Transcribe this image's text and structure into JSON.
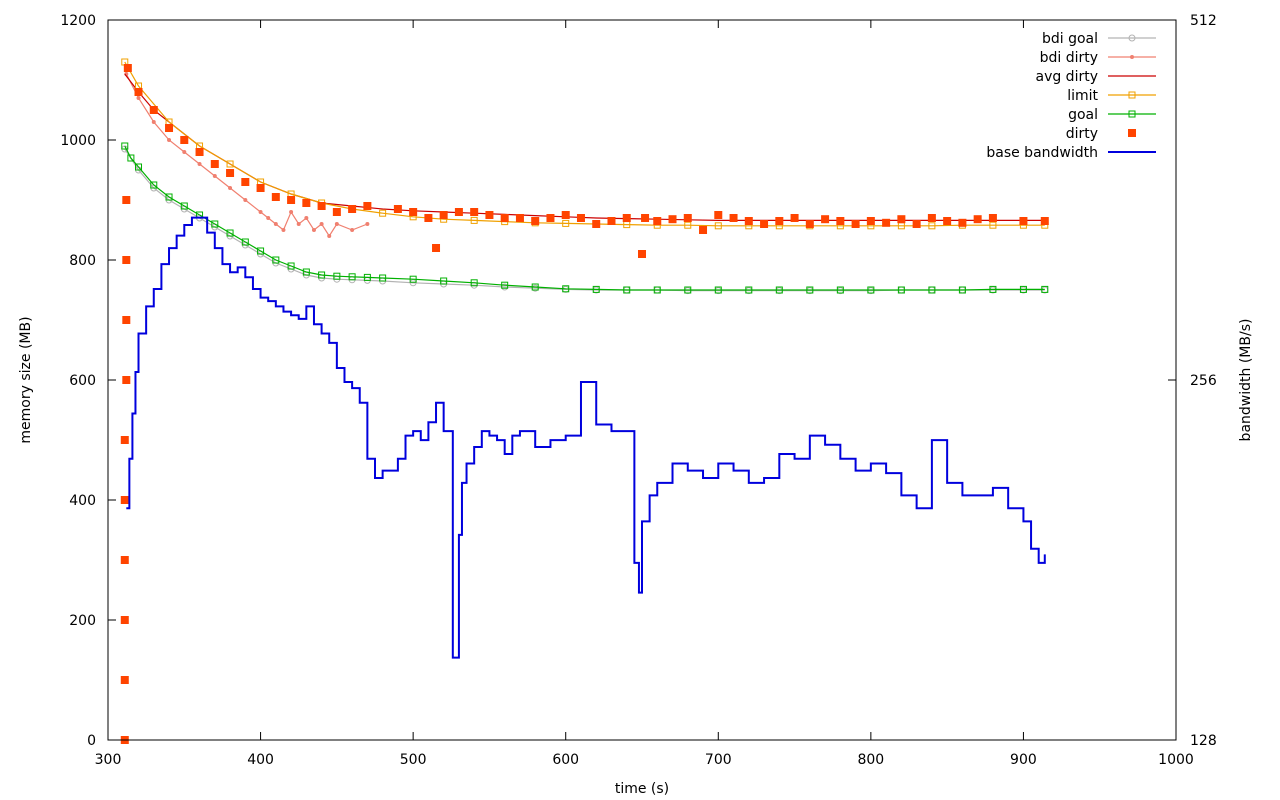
{
  "chart_data": {
    "type": "line",
    "xlabel": "time (s)",
    "ylabel": "memory size (MB)",
    "y2label": "bandwidth (MB/s)",
    "xlim": [
      300,
      1000
    ],
    "ylim": [
      0,
      1200
    ],
    "y2lim": [
      128,
      512
    ],
    "y2scale": "log",
    "x_ticks": [
      300,
      400,
      500,
      600,
      700,
      800,
      900,
      1000
    ],
    "y_ticks": [
      0,
      200,
      400,
      600,
      800,
      1000,
      1200
    ],
    "y2_ticks": [
      128,
      256,
      512
    ],
    "legend_position": "top-right",
    "series": [
      {
        "name": "bdi goal",
        "color": "#b3b3b3",
        "marker": "circle",
        "axis": "y",
        "x": [
          311,
          320,
          330,
          340,
          350,
          360,
          370,
          380,
          390,
          400,
          410,
          420,
          430,
          440,
          450,
          460,
          470,
          480,
          500,
          520,
          540,
          560,
          580,
          600,
          620,
          640,
          660,
          680,
          700,
          720,
          740,
          760,
          780,
          800,
          820,
          840,
          860,
          880,
          900,
          914
        ],
        "y": [
          985,
          950,
          920,
          900,
          885,
          870,
          855,
          840,
          825,
          810,
          795,
          785,
          775,
          770,
          768,
          767,
          766,
          765,
          762,
          760,
          758,
          755,
          753,
          751,
          750,
          750,
          750,
          749,
          749,
          749,
          749,
          749,
          749,
          749,
          750,
          750,
          750,
          750,
          750,
          750
        ]
      },
      {
        "name": "bdi dirty",
        "color": "#f08070",
        "marker": "dot",
        "axis": "y",
        "x": [
          312,
          320,
          330,
          340,
          350,
          360,
          370,
          380,
          390,
          400,
          405,
          410,
          415,
          420,
          425,
          430,
          435,
          440,
          445,
          450,
          460,
          470
        ],
        "y": [
          1110,
          1070,
          1030,
          1000,
          980,
          960,
          940,
          920,
          900,
          880,
          870,
          860,
          850,
          880,
          860,
          870,
          850,
          860,
          840,
          860,
          850,
          860
        ]
      },
      {
        "name": "avg dirty",
        "color": "#cc0000",
        "marker": "none",
        "axis": "y",
        "x": [
          311,
          320,
          330,
          340,
          350,
          360,
          370,
          380,
          390,
          400,
          420,
          440,
          460,
          480,
          500,
          520,
          540,
          560,
          580,
          600,
          620,
          640,
          660,
          680,
          700,
          720,
          740,
          760,
          780,
          800,
          820,
          840,
          860,
          880,
          900,
          914
        ],
        "y": [
          1110,
          1080,
          1050,
          1030,
          1010,
          990,
          975,
          960,
          945,
          930,
          910,
          895,
          890,
          885,
          882,
          880,
          878,
          876,
          874,
          872,
          870,
          869,
          868,
          867,
          866,
          866,
          866,
          866,
          866,
          866,
          866,
          866,
          866,
          866,
          866,
          866
        ]
      },
      {
        "name": "limit",
        "color": "#f0a000",
        "marker": "square-open",
        "axis": "y",
        "x": [
          311,
          320,
          340,
          360,
          380,
          400,
          420,
          440,
          460,
          480,
          500,
          520,
          540,
          560,
          580,
          600,
          620,
          640,
          660,
          680,
          700,
          720,
          740,
          760,
          780,
          800,
          820,
          840,
          860,
          880,
          900,
          914
        ],
        "y": [
          1130,
          1090,
          1030,
          990,
          960,
          930,
          910,
          895,
          885,
          878,
          872,
          868,
          866,
          864,
          862,
          861,
          860,
          859,
          858,
          858,
          857,
          857,
          857,
          857,
          857,
          857,
          857,
          857,
          858,
          858,
          858,
          858
        ]
      },
      {
        "name": "goal",
        "color": "#00b000",
        "marker": "square-open",
        "axis": "y",
        "x": [
          311,
          315,
          320,
          330,
          340,
          350,
          360,
          370,
          380,
          390,
          400,
          410,
          420,
          430,
          440,
          450,
          460,
          470,
          480,
          500,
          520,
          540,
          560,
          580,
          600,
          620,
          640,
          660,
          680,
          700,
          720,
          740,
          760,
          780,
          800,
          820,
          840,
          860,
          880,
          900,
          914
        ],
        "y": [
          990,
          970,
          955,
          925,
          905,
          890,
          875,
          860,
          845,
          830,
          815,
          800,
          790,
          780,
          775,
          773,
          772,
          771,
          770,
          768,
          765,
          762,
          758,
          755,
          752,
          751,
          750,
          750,
          750,
          750,
          750,
          750,
          750,
          750,
          750,
          750,
          750,
          750,
          751,
          751,
          751
        ]
      },
      {
        "name": "dirty",
        "color": "#ff4400",
        "marker": "square-filled",
        "axis": "y",
        "x": [
          311,
          311,
          311,
          311,
          311,
          311,
          312,
          312,
          312,
          312,
          313,
          320,
          330,
          340,
          350,
          360,
          370,
          380,
          390,
          400,
          410,
          420,
          430,
          440,
          450,
          460,
          470,
          490,
          500,
          510,
          515,
          520,
          530,
          540,
          550,
          560,
          570,
          580,
          590,
          600,
          610,
          620,
          630,
          640,
          650,
          652,
          660,
          670,
          680,
          690,
          700,
          710,
          720,
          730,
          740,
          750,
          760,
          770,
          780,
          790,
          800,
          810,
          820,
          830,
          840,
          850,
          860,
          870,
          880,
          900,
          914
        ],
        "y": [
          0,
          100,
          200,
          300,
          400,
          500,
          600,
          700,
          800,
          900,
          1120,
          1080,
          1050,
          1020,
          1000,
          980,
          960,
          945,
          930,
          920,
          905,
          900,
          895,
          890,
          880,
          885,
          890,
          885,
          880,
          870,
          820,
          875,
          880,
          880,
          875,
          870,
          870,
          865,
          870,
          875,
          870,
          860,
          865,
          870,
          810,
          870,
          865,
          868,
          870,
          850,
          875,
          870,
          865,
          860,
          865,
          870,
          860,
          868,
          865,
          860,
          865,
          862,
          868,
          860,
          870,
          865,
          862,
          868,
          870,
          865,
          865
        ]
      },
      {
        "name": "base bandwidth",
        "color": "#0000dd",
        "marker": "none",
        "axis": "y2",
        "x": [
          312,
          314,
          316,
          318,
          320,
          325,
          330,
          335,
          340,
          345,
          350,
          355,
          360,
          365,
          370,
          375,
          380,
          385,
          390,
          395,
          400,
          405,
          410,
          415,
          420,
          425,
          430,
          435,
          440,
          445,
          450,
          455,
          460,
          465,
          470,
          475,
          480,
          490,
          495,
          500,
          505,
          510,
          515,
          520,
          525,
          526,
          527,
          530,
          532,
          535,
          540,
          545,
          550,
          555,
          560,
          565,
          570,
          580,
          590,
          600,
          610,
          620,
          630,
          640,
          645,
          648,
          650,
          655,
          660,
          670,
          680,
          690,
          700,
          710,
          720,
          730,
          740,
          750,
          760,
          770,
          780,
          790,
          800,
          810,
          820,
          830,
          840,
          850,
          860,
          870,
          880,
          890,
          900,
          905,
          910,
          914
        ],
        "y": [
          200,
          220,
          240,
          260,
          280,
          295,
          305,
          320,
          330,
          338,
          345,
          350,
          350,
          340,
          330,
          320,
          315,
          318,
          312,
          305,
          300,
          298,
          295,
          292,
          290,
          288,
          295,
          285,
          280,
          275,
          262,
          255,
          252,
          245,
          220,
          212,
          215,
          220,
          230,
          232,
          228,
          236,
          245,
          232,
          232,
          150,
          150,
          190,
          210,
          218,
          225,
          232,
          230,
          228,
          222,
          230,
          232,
          225,
          228,
          230,
          255,
          235,
          232,
          232,
          180,
          170,
          195,
          205,
          210,
          218,
          215,
          212,
          218,
          215,
          210,
          212,
          222,
          220,
          230,
          226,
          220,
          215,
          218,
          214,
          205,
          200,
          228,
          210,
          205,
          205,
          208,
          200,
          195,
          185,
          180,
          183
        ]
      }
    ]
  }
}
